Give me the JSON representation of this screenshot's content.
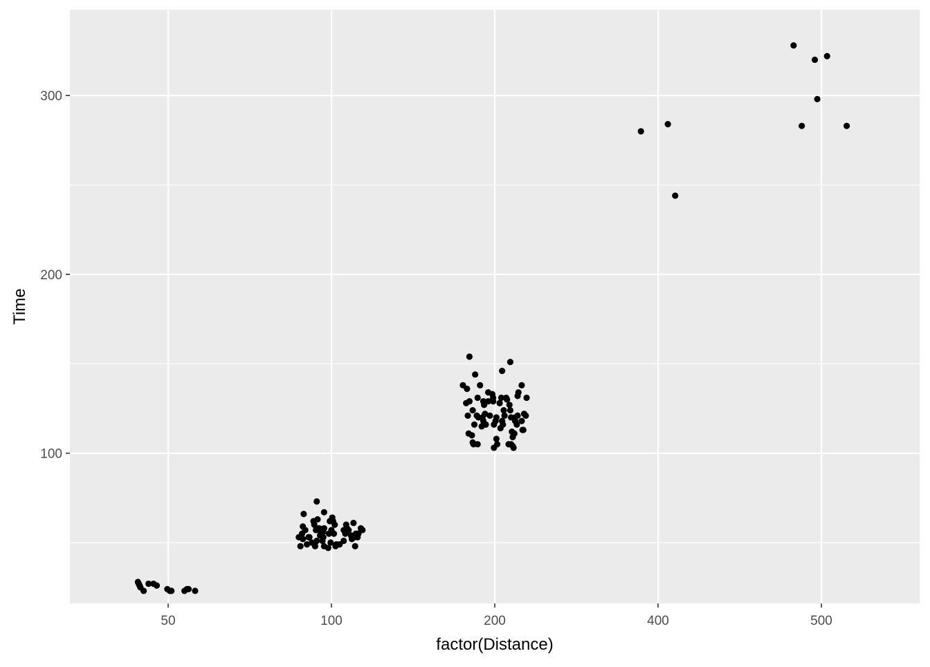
{
  "chart_data": {
    "type": "scatter",
    "title": "",
    "xlabel": "factor(Distance)",
    "ylabel": "Time",
    "x_categories": [
      "50",
      "100",
      "200",
      "400",
      "500"
    ],
    "ylim": [
      16,
      348
    ],
    "y_ticks": [
      100,
      200,
      300
    ],
    "grid": true,
    "legend": "none",
    "colors": {
      "panel_background": "#EBEBEB",
      "grid": "#FFFFFF",
      "point": "#000000",
      "tick_label": "#4D4D4D"
    },
    "points": [
      {
        "x": "50",
        "offset": -0.37,
        "y": 28
      },
      {
        "x": "50",
        "offset": -0.36,
        "y": 27
      },
      {
        "x": "50",
        "offset": -0.35,
        "y": 26
      },
      {
        "x": "50",
        "offset": -0.34,
        "y": 25
      },
      {
        "x": "50",
        "offset": -0.3,
        "y": 23
      },
      {
        "x": "50",
        "offset": -0.24,
        "y": 27
      },
      {
        "x": "50",
        "offset": -0.18,
        "y": 27
      },
      {
        "x": "50",
        "offset": -0.14,
        "y": 26
      },
      {
        "x": "50",
        "offset": -0.01,
        "y": 24
      },
      {
        "x": "50",
        "offset": 0.02,
        "y": 23
      },
      {
        "x": "50",
        "offset": 0.04,
        "y": 23
      },
      {
        "x": "50",
        "offset": 0.2,
        "y": 23
      },
      {
        "x": "50",
        "offset": 0.23,
        "y": 24
      },
      {
        "x": "50",
        "offset": 0.25,
        "y": 24
      },
      {
        "x": "50",
        "offset": 0.33,
        "y": 23
      },
      {
        "x": "100",
        "offset": -0.4,
        "y": 53
      },
      {
        "x": "100",
        "offset": -0.38,
        "y": 48
      },
      {
        "x": "100",
        "offset": -0.36,
        "y": 55
      },
      {
        "x": "100",
        "offset": -0.35,
        "y": 59
      },
      {
        "x": "100",
        "offset": -0.35,
        "y": 52
      },
      {
        "x": "100",
        "offset": -0.34,
        "y": 66
      },
      {
        "x": "100",
        "offset": -0.32,
        "y": 57
      },
      {
        "x": "100",
        "offset": -0.3,
        "y": 49
      },
      {
        "x": "100",
        "offset": -0.28,
        "y": 53
      },
      {
        "x": "100",
        "offset": -0.27,
        "y": 53
      },
      {
        "x": "100",
        "offset": -0.24,
        "y": 50
      },
      {
        "x": "100",
        "offset": -0.22,
        "y": 62
      },
      {
        "x": "100",
        "offset": -0.21,
        "y": 60
      },
      {
        "x": "100",
        "offset": -0.2,
        "y": 50
      },
      {
        "x": "100",
        "offset": -0.2,
        "y": 48
      },
      {
        "x": "100",
        "offset": -0.19,
        "y": 57
      },
      {
        "x": "100",
        "offset": -0.18,
        "y": 51
      },
      {
        "x": "100",
        "offset": -0.18,
        "y": 73
      },
      {
        "x": "100",
        "offset": -0.17,
        "y": 63
      },
      {
        "x": "100",
        "offset": -0.15,
        "y": 58
      },
      {
        "x": "100",
        "offset": -0.14,
        "y": 54
      },
      {
        "x": "100",
        "offset": -0.13,
        "y": 56
      },
      {
        "x": "100",
        "offset": -0.12,
        "y": 55
      },
      {
        "x": "100",
        "offset": -0.11,
        "y": 51
      },
      {
        "x": "100",
        "offset": -0.1,
        "y": 56
      },
      {
        "x": "100",
        "offset": -0.1,
        "y": 53
      },
      {
        "x": "100",
        "offset": -0.09,
        "y": 48
      },
      {
        "x": "100",
        "offset": -0.09,
        "y": 67
      },
      {
        "x": "100",
        "offset": -0.09,
        "y": 58
      },
      {
        "x": "100",
        "offset": -0.04,
        "y": 47
      },
      {
        "x": "100",
        "offset": -0.03,
        "y": 55
      },
      {
        "x": "100",
        "offset": -0.02,
        "y": 62
      },
      {
        "x": "100",
        "offset": -0.01,
        "y": 50
      },
      {
        "x": "100",
        "offset": 0.0,
        "y": 57
      },
      {
        "x": "100",
        "offset": 0.01,
        "y": 64
      },
      {
        "x": "100",
        "offset": 0.02,
        "y": 62
      },
      {
        "x": "100",
        "offset": 0.03,
        "y": 55
      },
      {
        "x": "100",
        "offset": 0.04,
        "y": 60
      },
      {
        "x": "100",
        "offset": 0.05,
        "y": 48
      },
      {
        "x": "100",
        "offset": 0.06,
        "y": 49
      },
      {
        "x": "100",
        "offset": 0.1,
        "y": 49
      },
      {
        "x": "100",
        "offset": 0.15,
        "y": 51
      },
      {
        "x": "100",
        "offset": 0.15,
        "y": 57
      },
      {
        "x": "100",
        "offset": 0.17,
        "y": 55
      },
      {
        "x": "100",
        "offset": 0.18,
        "y": 60
      },
      {
        "x": "100",
        "offset": 0.19,
        "y": 58
      },
      {
        "x": "100",
        "offset": 0.21,
        "y": 57
      },
      {
        "x": "100",
        "offset": 0.24,
        "y": 54
      },
      {
        "x": "100",
        "offset": 0.25,
        "y": 52
      },
      {
        "x": "100",
        "offset": 0.27,
        "y": 61
      },
      {
        "x": "100",
        "offset": 0.28,
        "y": 53
      },
      {
        "x": "100",
        "offset": 0.29,
        "y": 48
      },
      {
        "x": "100",
        "offset": 0.3,
        "y": 55
      },
      {
        "x": "100",
        "offset": 0.32,
        "y": 53
      },
      {
        "x": "100",
        "offset": 0.33,
        "y": 55
      },
      {
        "x": "100",
        "offset": 0.36,
        "y": 58
      },
      {
        "x": "100",
        "offset": 0.38,
        "y": 57
      },
      {
        "x": "200",
        "offset": -0.39,
        "y": 138
      },
      {
        "x": "200",
        "offset": -0.35,
        "y": 128
      },
      {
        "x": "200",
        "offset": -0.34,
        "y": 136
      },
      {
        "x": "200",
        "offset": -0.33,
        "y": 121
      },
      {
        "x": "200",
        "offset": -0.32,
        "y": 111
      },
      {
        "x": "200",
        "offset": -0.31,
        "y": 129
      },
      {
        "x": "200",
        "offset": -0.31,
        "y": 154
      },
      {
        "x": "200",
        "offset": -0.28,
        "y": 110
      },
      {
        "x": "200",
        "offset": -0.27,
        "y": 124
      },
      {
        "x": "200",
        "offset": -0.27,
        "y": 106
      },
      {
        "x": "200",
        "offset": -0.26,
        "y": 105
      },
      {
        "x": "200",
        "offset": -0.25,
        "y": 116
      },
      {
        "x": "200",
        "offset": -0.24,
        "y": 144
      },
      {
        "x": "200",
        "offset": -0.22,
        "y": 121
      },
      {
        "x": "200",
        "offset": -0.21,
        "y": 131
      },
      {
        "x": "200",
        "offset": -0.21,
        "y": 105
      },
      {
        "x": "200",
        "offset": -0.2,
        "y": 120
      },
      {
        "x": "200",
        "offset": -0.18,
        "y": 138
      },
      {
        "x": "200",
        "offset": -0.16,
        "y": 115
      },
      {
        "x": "200",
        "offset": -0.15,
        "y": 120
      },
      {
        "x": "200",
        "offset": -0.14,
        "y": 129
      },
      {
        "x": "200",
        "offset": -0.14,
        "y": 118
      },
      {
        "x": "200",
        "offset": -0.13,
        "y": 127
      },
      {
        "x": "200",
        "offset": -0.12,
        "y": 122
      },
      {
        "x": "200",
        "offset": -0.11,
        "y": 116
      },
      {
        "x": "200",
        "offset": -0.08,
        "y": 129
      },
      {
        "x": "200",
        "offset": -0.08,
        "y": 134
      },
      {
        "x": "200",
        "offset": -0.06,
        "y": 121
      },
      {
        "x": "200",
        "offset": -0.03,
        "y": 133
      },
      {
        "x": "200",
        "offset": -0.02,
        "y": 131
      },
      {
        "x": "200",
        "offset": -0.02,
        "y": 129
      },
      {
        "x": "200",
        "offset": -0.01,
        "y": 116
      },
      {
        "x": "200",
        "offset": -0.01,
        "y": 103
      },
      {
        "x": "200",
        "offset": 0.01,
        "y": 118
      },
      {
        "x": "200",
        "offset": 0.02,
        "y": 108
      },
      {
        "x": "200",
        "offset": 0.02,
        "y": 120
      },
      {
        "x": "200",
        "offset": 0.03,
        "y": 105
      },
      {
        "x": "200",
        "offset": 0.06,
        "y": 128
      },
      {
        "x": "200",
        "offset": 0.07,
        "y": 114
      },
      {
        "x": "200",
        "offset": 0.08,
        "y": 131
      },
      {
        "x": "200",
        "offset": 0.09,
        "y": 118
      },
      {
        "x": "200",
        "offset": 0.09,
        "y": 146
      },
      {
        "x": "200",
        "offset": 0.1,
        "y": 116
      },
      {
        "x": "200",
        "offset": 0.11,
        "y": 124
      },
      {
        "x": "200",
        "offset": 0.12,
        "y": 121
      },
      {
        "x": "200",
        "offset": 0.14,
        "y": 131
      },
      {
        "x": "200",
        "offset": 0.15,
        "y": 130
      },
      {
        "x": "200",
        "offset": 0.17,
        "y": 105
      },
      {
        "x": "200",
        "offset": 0.18,
        "y": 127
      },
      {
        "x": "200",
        "offset": 0.19,
        "y": 151
      },
      {
        "x": "200",
        "offset": 0.19,
        "y": 124
      },
      {
        "x": "200",
        "offset": 0.2,
        "y": 120
      },
      {
        "x": "200",
        "offset": 0.2,
        "y": 105
      },
      {
        "x": "200",
        "offset": 0.21,
        "y": 112
      },
      {
        "x": "200",
        "offset": 0.22,
        "y": 109
      },
      {
        "x": "200",
        "offset": 0.22,
        "y": 104
      },
      {
        "x": "200",
        "offset": 0.23,
        "y": 103
      },
      {
        "x": "200",
        "offset": 0.24,
        "y": 111
      },
      {
        "x": "200",
        "offset": 0.25,
        "y": 120
      },
      {
        "x": "200",
        "offset": 0.25,
        "y": 118
      },
      {
        "x": "200",
        "offset": 0.27,
        "y": 116
      },
      {
        "x": "200",
        "offset": 0.28,
        "y": 121
      },
      {
        "x": "200",
        "offset": 0.28,
        "y": 132
      },
      {
        "x": "200",
        "offset": 0.29,
        "y": 134
      },
      {
        "x": "200",
        "offset": 0.33,
        "y": 138
      },
      {
        "x": "200",
        "offset": 0.33,
        "y": 118
      },
      {
        "x": "200",
        "offset": 0.34,
        "y": 113
      },
      {
        "x": "200",
        "offset": 0.35,
        "y": 113
      },
      {
        "x": "200",
        "offset": 0.36,
        "y": 122
      },
      {
        "x": "200",
        "offset": 0.38,
        "y": 121
      },
      {
        "x": "200",
        "offset": 0.39,
        "y": 131
      },
      {
        "x": "400",
        "offset": -0.21,
        "y": 280
      },
      {
        "x": "400",
        "offset": 0.12,
        "y": 284
      },
      {
        "x": "400",
        "offset": 0.21,
        "y": 244
      },
      {
        "x": "500",
        "offset": -0.34,
        "y": 328
      },
      {
        "x": "500",
        "offset": -0.24,
        "y": 283
      },
      {
        "x": "500",
        "offset": -0.08,
        "y": 320
      },
      {
        "x": "500",
        "offset": -0.05,
        "y": 298
      },
      {
        "x": "500",
        "offset": 0.07,
        "y": 322
      },
      {
        "x": "500",
        "offset": 0.31,
        "y": 283
      }
    ]
  }
}
